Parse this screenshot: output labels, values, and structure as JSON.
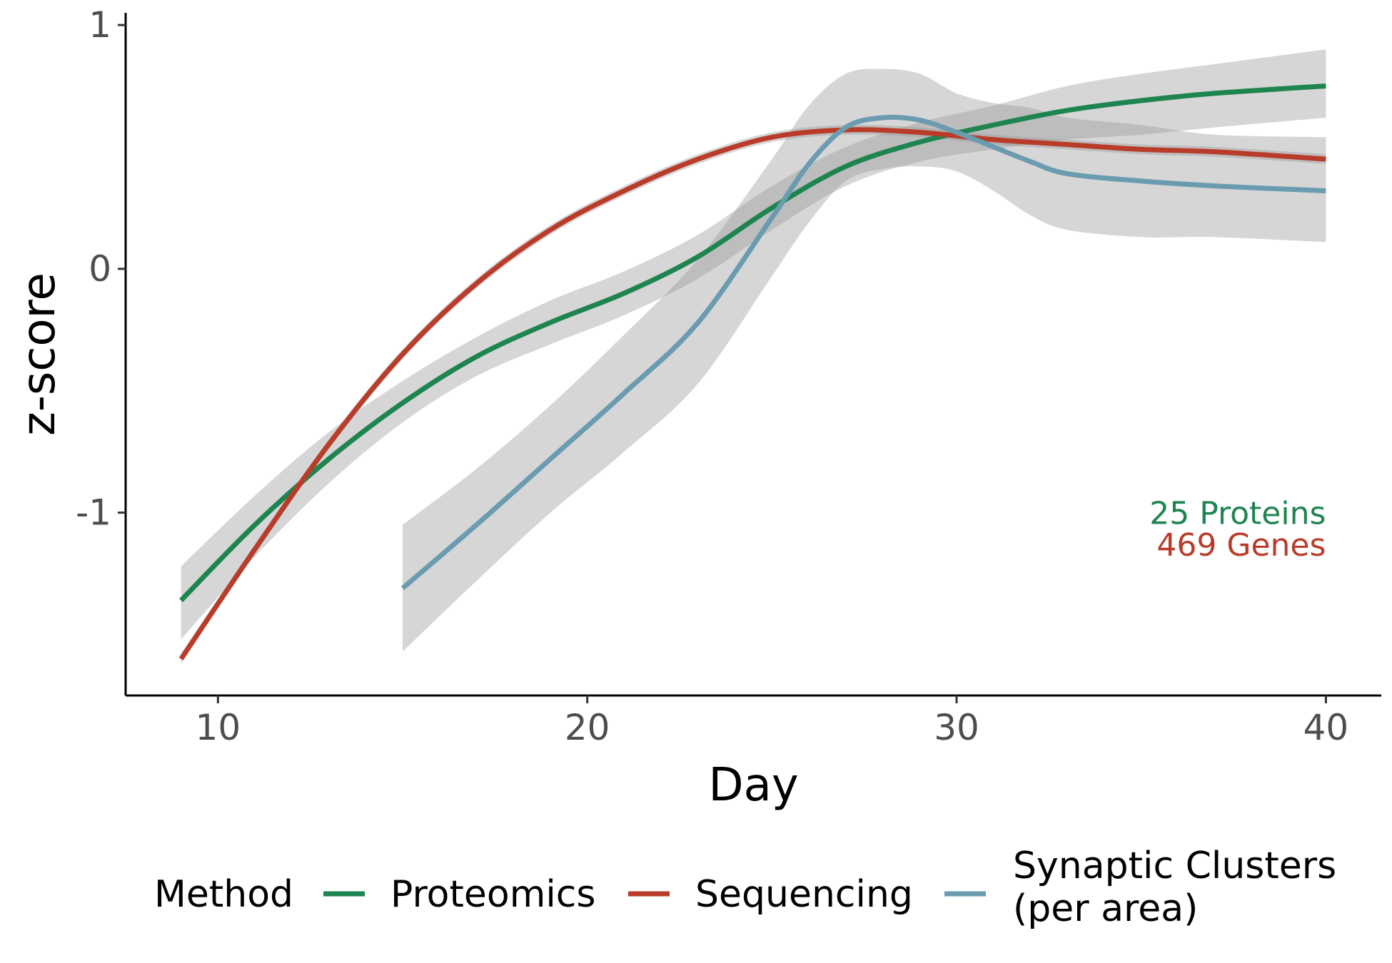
{
  "chart_data": {
    "type": "line",
    "xlabel": "Day",
    "ylabel": "z-score",
    "xlim": [
      7.5,
      41.5
    ],
    "ylim": [
      -1.75,
      1.05
    ],
    "x_ticks": [
      10,
      20,
      30,
      40
    ],
    "y_ticks": [
      1,
      0,
      -1
    ],
    "x_tick_labels": [
      "10",
      "20",
      "30",
      "40"
    ],
    "y_tick_labels": [
      "1",
      "0",
      "-1"
    ],
    "grid": false,
    "legend_position": "bottom",
    "legend_title": "Method",
    "series": [
      {
        "name": "Proteomics",
        "color": "#1e8450",
        "x": [
          9,
          11,
          13,
          15,
          17,
          19,
          21,
          23,
          25,
          27,
          29,
          31,
          33,
          35,
          37,
          40
        ],
        "y": [
          -1.36,
          -1.05,
          -0.78,
          -0.55,
          -0.36,
          -0.22,
          -0.1,
          0.05,
          0.25,
          0.42,
          0.52,
          0.59,
          0.65,
          0.69,
          0.72,
          0.75
        ],
        "ci_lower": [
          -1.52,
          -1.18,
          -0.88,
          -0.63,
          -0.44,
          -0.31,
          -0.19,
          -0.04,
          0.16,
          0.34,
          0.44,
          0.49,
          0.53,
          0.55,
          0.58,
          0.62
        ],
        "ci_upper": [
          -1.22,
          -0.93,
          -0.67,
          -0.46,
          -0.28,
          -0.13,
          -0.01,
          0.14,
          0.34,
          0.5,
          0.6,
          0.67,
          0.75,
          0.8,
          0.84,
          0.9
        ]
      },
      {
        "name": "Sequencing",
        "color": "#b93c2a",
        "x": [
          9,
          11,
          13,
          15,
          17,
          19,
          21,
          23,
          25,
          27,
          29,
          31,
          33,
          35,
          37,
          40
        ],
        "y": [
          -1.6,
          -1.15,
          -0.72,
          -0.35,
          -0.06,
          0.16,
          0.32,
          0.45,
          0.54,
          0.57,
          0.56,
          0.53,
          0.51,
          0.49,
          0.48,
          0.45
        ],
        "ci_lower": [
          -1.62,
          -1.17,
          -0.74,
          -0.37,
          -0.08,
          0.14,
          0.3,
          0.43,
          0.52,
          0.55,
          0.54,
          0.51,
          0.49,
          0.47,
          0.46,
          0.43
        ],
        "ci_upper": [
          -1.58,
          -1.13,
          -0.7,
          -0.33,
          -0.04,
          0.18,
          0.34,
          0.47,
          0.56,
          0.59,
          0.58,
          0.55,
          0.53,
          0.51,
          0.5,
          0.47
        ]
      },
      {
        "name": "Synaptic Clusters (per area)",
        "name_lines": [
          "Synaptic Clusters",
          "(per area)"
        ],
        "color": "#6b9bb0",
        "x": [
          15,
          17,
          19,
          21,
          23,
          25,
          26,
          27,
          28,
          29,
          30,
          31,
          32,
          33,
          35,
          37,
          40
        ],
        "y": [
          -1.31,
          -1.05,
          -0.78,
          -0.51,
          -0.22,
          0.21,
          0.43,
          0.58,
          0.62,
          0.61,
          0.56,
          0.5,
          0.44,
          0.39,
          0.36,
          0.34,
          0.32
        ],
        "ci_lower": [
          -1.57,
          -1.28,
          -1.0,
          -0.75,
          -0.47,
          -0.03,
          0.19,
          0.36,
          0.41,
          0.42,
          0.4,
          0.32,
          0.22,
          0.16,
          0.13,
          0.13,
          0.11
        ],
        "ci_upper": [
          -1.05,
          -0.82,
          -0.56,
          -0.27,
          0.04,
          0.45,
          0.67,
          0.8,
          0.82,
          0.8,
          0.72,
          0.68,
          0.66,
          0.62,
          0.59,
          0.55,
          0.54
        ]
      }
    ],
    "annotations": [
      {
        "text": "25 Proteins",
        "color": "#1e8450",
        "x": 40,
        "y": -1.0
      },
      {
        "text": "469 Genes",
        "color": "#b93c2a",
        "x": 40,
        "y": -1.13
      }
    ]
  }
}
